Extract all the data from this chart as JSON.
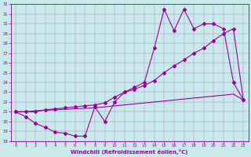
{
  "xlabel": "Windchill (Refroidissement éolien,°C)",
  "bg_color": "#c8eaea",
  "line_color": "#990099",
  "xlim": [
    -0.5,
    23.5
  ],
  "ylim": [
    18,
    32
  ],
  "xticks": [
    0,
    1,
    2,
    3,
    4,
    5,
    6,
    7,
    8,
    9,
    10,
    11,
    12,
    13,
    14,
    15,
    16,
    17,
    18,
    19,
    20,
    21,
    22,
    23
  ],
  "yticks": [
    18,
    19,
    20,
    21,
    22,
    23,
    24,
    25,
    26,
    27,
    28,
    29,
    30,
    31,
    32
  ],
  "series1_x": [
    0,
    1,
    2,
    3,
    4,
    5,
    6,
    7,
    8,
    9,
    10,
    11,
    12,
    13,
    14,
    15,
    16,
    17,
    18,
    19,
    20,
    21,
    22,
    23
  ],
  "series1_y": [
    21.0,
    20.5,
    19.8,
    19.4,
    18.9,
    18.8,
    18.5,
    18.5,
    21.5,
    20.0,
    22.0,
    23.0,
    23.5,
    24.0,
    27.5,
    31.5,
    29.3,
    31.5,
    29.5,
    30.0,
    30.0,
    29.5,
    24.0,
    22.2
  ],
  "series2_x": [
    0,
    1,
    2,
    3,
    4,
    5,
    6,
    7,
    8,
    9,
    10,
    11,
    12,
    13,
    14,
    15,
    16,
    17,
    18,
    19,
    20,
    21,
    22,
    23
  ],
  "series2_y": [
    21.0,
    21.0,
    21.0,
    21.2,
    21.3,
    21.4,
    21.5,
    21.6,
    21.7,
    21.9,
    22.5,
    23.0,
    23.3,
    23.7,
    24.2,
    25.0,
    25.7,
    26.3,
    27.0,
    27.5,
    28.3,
    29.0,
    29.5,
    22.2
  ],
  "series3_x": [
    0,
    1,
    2,
    3,
    4,
    5,
    6,
    7,
    8,
    9,
    10,
    11,
    12,
    13,
    14,
    15,
    16,
    17,
    18,
    19,
    20,
    21,
    22,
    23
  ],
  "series3_y": [
    21.0,
    21.0,
    21.1,
    21.15,
    21.2,
    21.25,
    21.3,
    21.35,
    21.4,
    21.5,
    21.6,
    21.7,
    21.8,
    21.9,
    22.0,
    22.1,
    22.2,
    22.3,
    22.4,
    22.5,
    22.6,
    22.7,
    22.8,
    22.2
  ]
}
